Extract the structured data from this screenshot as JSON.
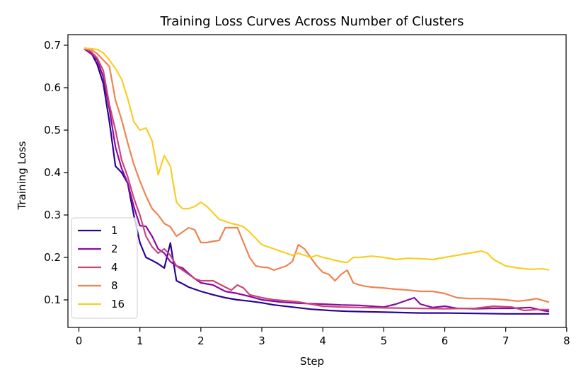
{
  "chart_data": {
    "type": "line",
    "title": "Training Loss Curves Across Number of Clusters",
    "xlabel": "Step",
    "ylabel": "Training Loss",
    "xlim": [
      -0.18,
      7.99
    ],
    "ylim": [
      0.035,
      0.725
    ],
    "xticks": [
      0,
      1,
      2,
      3,
      4,
      5,
      6,
      7,
      8
    ],
    "yticks": [
      0.1,
      0.2,
      0.3,
      0.4,
      0.5,
      0.6,
      0.7
    ],
    "xtick_labels": [
      "0",
      "1",
      "2",
      "3",
      "4",
      "5",
      "6",
      "7",
      "8"
    ],
    "ytick_labels": [
      "0.1",
      "0.2",
      "0.3",
      "0.4",
      "0.5",
      "0.6",
      "0.7"
    ],
    "grid": false,
    "legend_position": "lower-left",
    "series": [
      {
        "name": "1",
        "color": "#2a0593",
        "x": [
          0.1,
          0.2,
          0.3,
          0.4,
          0.5,
          0.6,
          0.7,
          0.8,
          0.9,
          1.0,
          1.1,
          1.2,
          1.3,
          1.4,
          1.5,
          1.6,
          1.7,
          1.8,
          1.9,
          2.0,
          2.2,
          2.4,
          2.6,
          2.8,
          3.0,
          3.2,
          3.5,
          3.8,
          4.1,
          4.4,
          4.7,
          5.0,
          5.3,
          5.6,
          6.0,
          6.5,
          7.0,
          7.5,
          7.7
        ],
        "y": [
          0.693,
          0.683,
          0.655,
          0.61,
          0.52,
          0.415,
          0.4,
          0.375,
          0.3,
          0.235,
          0.2,
          0.193,
          0.185,
          0.175,
          0.234,
          0.145,
          0.138,
          0.13,
          0.125,
          0.12,
          0.112,
          0.105,
          0.1,
          0.097,
          0.093,
          0.088,
          0.083,
          0.078,
          0.075,
          0.073,
          0.072,
          0.071,
          0.07,
          0.069,
          0.069,
          0.068,
          0.067,
          0.067,
          0.067
        ]
      },
      {
        "name": "2",
        "color": "#8b0aa5",
        "x": [
          0.1,
          0.2,
          0.3,
          0.4,
          0.5,
          0.6,
          0.7,
          0.8,
          0.9,
          1.0,
          1.1,
          1.2,
          1.3,
          1.4,
          1.5,
          1.6,
          1.7,
          1.8,
          1.9,
          2.0,
          2.2,
          2.4,
          2.6,
          2.8,
          3.0,
          3.3,
          3.6,
          4.0,
          4.3,
          4.6,
          5.0,
          5.2,
          5.4,
          5.5,
          5.6,
          5.8,
          6.0,
          6.2,
          6.5,
          6.8,
          7.1,
          7.4,
          7.6,
          7.7
        ],
        "y": [
          0.69,
          0.68,
          0.665,
          0.625,
          0.55,
          0.46,
          0.41,
          0.375,
          0.32,
          0.275,
          0.273,
          0.25,
          0.22,
          0.21,
          0.19,
          0.18,
          0.175,
          0.162,
          0.15,
          0.14,
          0.135,
          0.12,
          0.115,
          0.108,
          0.1,
          0.095,
          0.092,
          0.09,
          0.088,
          0.087,
          0.083,
          0.09,
          0.1,
          0.105,
          0.09,
          0.082,
          0.085,
          0.08,
          0.079,
          0.08,
          0.08,
          0.082,
          0.075,
          0.073
        ]
      },
      {
        "name": "4",
        "color": "#c8477a",
        "x": [
          0.1,
          0.2,
          0.3,
          0.4,
          0.5,
          0.6,
          0.7,
          0.8,
          0.9,
          1.0,
          1.1,
          1.2,
          1.3,
          1.4,
          1.5,
          1.6,
          1.7,
          1.8,
          1.9,
          2.0,
          2.2,
          2.4,
          2.5,
          2.6,
          2.7,
          2.8,
          3.0,
          3.2,
          3.4,
          3.6,
          3.8,
          4.0,
          4.3,
          4.6,
          5.0,
          5.5,
          6.0,
          6.5,
          6.8,
          7.1,
          7.3,
          7.5,
          7.7
        ],
        "y": [
          0.692,
          0.685,
          0.67,
          0.64,
          0.56,
          0.5,
          0.43,
          0.39,
          0.34,
          0.3,
          0.25,
          0.225,
          0.21,
          0.22,
          0.205,
          0.18,
          0.17,
          0.16,
          0.15,
          0.145,
          0.145,
          0.13,
          0.123,
          0.135,
          0.128,
          0.112,
          0.105,
          0.1,
          0.098,
          0.095,
          0.09,
          0.085,
          0.083,
          0.082,
          0.081,
          0.08,
          0.079,
          0.08,
          0.085,
          0.083,
          0.075,
          0.077,
          0.077
        ]
      },
      {
        "name": "8",
        "color": "#ef8350",
        "x": [
          0.1,
          0.2,
          0.3,
          0.4,
          0.5,
          0.6,
          0.7,
          0.8,
          0.9,
          1.0,
          1.1,
          1.2,
          1.3,
          1.4,
          1.5,
          1.6,
          1.7,
          1.8,
          1.9,
          2.0,
          2.1,
          2.2,
          2.3,
          2.4,
          2.5,
          2.6,
          2.7,
          2.8,
          2.9,
          3.0,
          3.1,
          3.2,
          3.3,
          3.4,
          3.5,
          3.6,
          3.7,
          3.8,
          3.9,
          4.0,
          4.1,
          4.2,
          4.3,
          4.4,
          4.5,
          4.6,
          4.7,
          4.8,
          5.0,
          5.2,
          5.4,
          5.6,
          5.8,
          6.0,
          6.2,
          6.4,
          6.6,
          6.8,
          7.0,
          7.2,
          7.4,
          7.5,
          7.7
        ],
        "y": [
          0.692,
          0.69,
          0.68,
          0.665,
          0.65,
          0.57,
          0.525,
          0.47,
          0.42,
          0.38,
          0.345,
          0.315,
          0.3,
          0.28,
          0.272,
          0.25,
          0.26,
          0.27,
          0.265,
          0.235,
          0.235,
          0.238,
          0.24,
          0.27,
          0.27,
          0.27,
          0.235,
          0.2,
          0.18,
          0.177,
          0.176,
          0.17,
          0.175,
          0.18,
          0.19,
          0.23,
          0.22,
          0.2,
          0.18,
          0.165,
          0.16,
          0.145,
          0.16,
          0.17,
          0.14,
          0.135,
          0.132,
          0.13,
          0.128,
          0.125,
          0.123,
          0.12,
          0.12,
          0.115,
          0.105,
          0.103,
          0.103,
          0.102,
          0.1,
          0.097,
          0.1,
          0.103,
          0.095
        ]
      },
      {
        "name": "16",
        "color": "#f9cd26",
        "x": [
          0.1,
          0.2,
          0.3,
          0.4,
          0.5,
          0.6,
          0.7,
          0.8,
          0.9,
          1.0,
          1.1,
          1.2,
          1.3,
          1.4,
          1.5,
          1.6,
          1.7,
          1.8,
          1.9,
          2.0,
          2.1,
          2.2,
          2.3,
          2.4,
          2.5,
          2.6,
          2.7,
          2.8,
          2.9,
          3.0,
          3.1,
          3.2,
          3.3,
          3.4,
          3.5,
          3.6,
          3.7,
          3.8,
          3.9,
          4.0,
          4.1,
          4.2,
          4.3,
          4.4,
          4.5,
          4.6,
          4.8,
          5.0,
          5.2,
          5.4,
          5.6,
          5.8,
          6.0,
          6.2,
          6.4,
          6.6,
          6.7,
          6.8,
          7.0,
          7.2,
          7.4,
          7.6,
          7.7
        ],
        "y": [
          0.693,
          0.692,
          0.69,
          0.682,
          0.665,
          0.645,
          0.62,
          0.575,
          0.52,
          0.5,
          0.505,
          0.475,
          0.395,
          0.44,
          0.415,
          0.33,
          0.315,
          0.315,
          0.32,
          0.33,
          0.32,
          0.305,
          0.29,
          0.285,
          0.28,
          0.277,
          0.272,
          0.26,
          0.245,
          0.23,
          0.225,
          0.22,
          0.215,
          0.21,
          0.205,
          0.21,
          0.205,
          0.2,
          0.205,
          0.2,
          0.197,
          0.193,
          0.19,
          0.188,
          0.2,
          0.2,
          0.203,
          0.2,
          0.195,
          0.198,
          0.197,
          0.195,
          0.2,
          0.205,
          0.21,
          0.215,
          0.21,
          0.195,
          0.18,
          0.175,
          0.172,
          0.173,
          0.171
        ]
      }
    ]
  }
}
